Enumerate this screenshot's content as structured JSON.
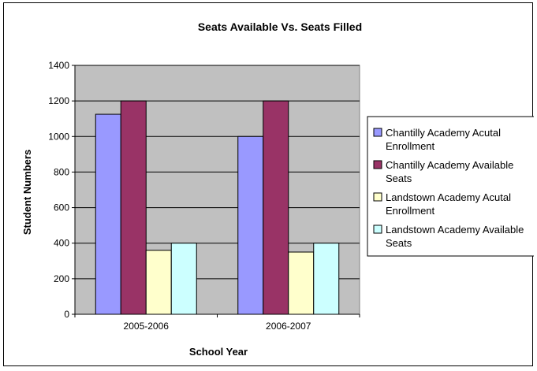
{
  "chart_data": {
    "type": "bar",
    "title": "Seats Available Vs. Seats Filled",
    "xlabel": "School Year",
    "ylabel": "Student Numbers",
    "categories": [
      "2005-2006",
      "2006-2007"
    ],
    "ylim": [
      0,
      1400
    ],
    "yticks": [
      0,
      200,
      400,
      600,
      800,
      1000,
      1200,
      1400
    ],
    "grid": true,
    "legend_position": "right",
    "plot_background": "#c0c0c0",
    "series": [
      {
        "name": "Chantilly Academy Acutal Enrollment",
        "color": "#9999ff",
        "values": [
          1125,
          1000
        ]
      },
      {
        "name": "Chantilly Academy Available Seats",
        "color": "#993366",
        "values": [
          1200,
          1200
        ]
      },
      {
        "name": "Landstown Academy Acutal Enrollment",
        "color": "#ffffcc",
        "values": [
          360,
          350
        ]
      },
      {
        "name": "Landstown Academy Available Seats",
        "color": "#ccffff",
        "values": [
          400,
          400
        ]
      }
    ],
    "legend_lines": [
      [
        "Chantilly Academy Acutal",
        "Enrollment"
      ],
      [
        "Chantilly Academy Available",
        "Seats"
      ],
      [
        "Landstown Academy Acutal",
        "Enrollment"
      ],
      [
        "Landstown Academy Available",
        "Seats"
      ]
    ]
  }
}
